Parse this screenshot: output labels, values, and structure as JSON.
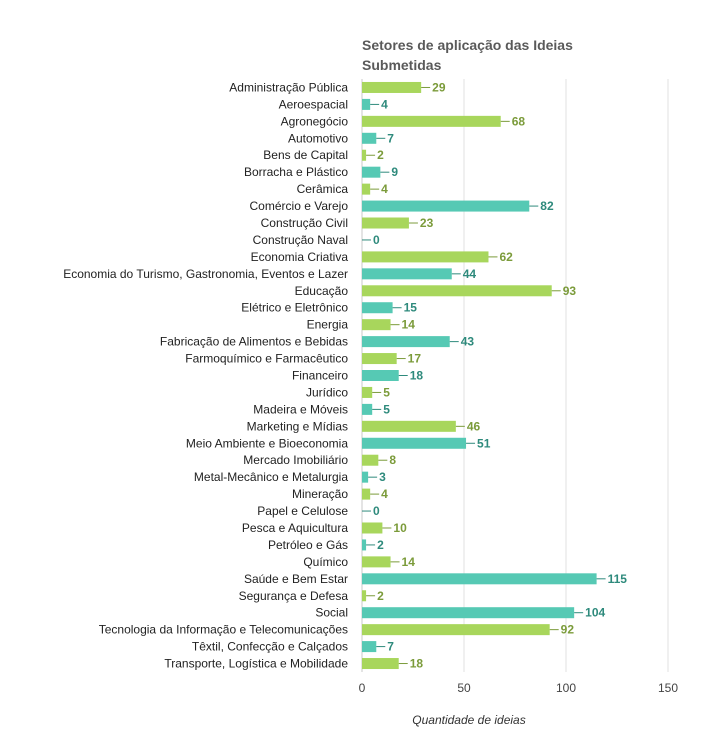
{
  "chart_data": {
    "type": "bar",
    "orientation": "horizontal",
    "title_lines": [
      "Setores de aplicação das Ideias",
      "Submetidas"
    ],
    "xlabel": "Quantidade de ideias",
    "xlim": [
      0,
      150
    ],
    "xticks": [
      0,
      50,
      100,
      150
    ],
    "grid": true,
    "colors": {
      "green": "#a8d65c",
      "teal": "#56c9b4",
      "green_label": "#7b9b3a",
      "teal_label": "#2e8a7c"
    },
    "categories": [
      "Administração Pública",
      "Aeroespacial",
      "Agronegócio",
      "Automotivo",
      "Bens de Capital",
      "Borracha e Plástico",
      "Cerâmica",
      "Comércio e Varejo",
      "Construção Civil",
      "Construção Naval",
      "Economia Criativa",
      "Economia do Turismo, Gastronomia, Eventos e Lazer",
      "Educação",
      "Elétrico e Eletrônico",
      "Energia",
      "Fabricação de Alimentos e Bebidas",
      "Farmoquímico e Farmacêutico",
      "Financeiro",
      "Jurídico",
      "Madeira e Móveis",
      "Marketing e Mídias",
      "Meio Ambiente e Bioeconomia",
      "Mercado Imobiliário",
      "Metal-Mecânico e Metalurgia",
      "Mineração",
      "Papel e Celulose",
      "Pesca e Aquicultura",
      "Petróleo e Gás",
      "Químico",
      "Saúde e Bem Estar",
      "Segurança e Defesa",
      "Social",
      "Tecnologia da Informação e Telecomunicações",
      "Têxtil, Confecção e Calçados",
      "Transporte, Logística e Mobilidade"
    ],
    "values": [
      29,
      4,
      68,
      7,
      2,
      9,
      4,
      82,
      23,
      0,
      62,
      44,
      93,
      15,
      14,
      43,
      17,
      18,
      5,
      5,
      46,
      51,
      8,
      3,
      4,
      0,
      10,
      2,
      14,
      115,
      2,
      104,
      92,
      7,
      18
    ],
    "bar_colors": [
      "green",
      "teal",
      "green",
      "teal",
      "green",
      "teal",
      "green",
      "teal",
      "green",
      "teal",
      "green",
      "teal",
      "green",
      "teal",
      "green",
      "teal",
      "green",
      "teal",
      "green",
      "teal",
      "green",
      "teal",
      "green",
      "teal",
      "green",
      "teal",
      "green",
      "teal",
      "green",
      "teal",
      "green",
      "teal",
      "green",
      "teal",
      "green"
    ]
  }
}
